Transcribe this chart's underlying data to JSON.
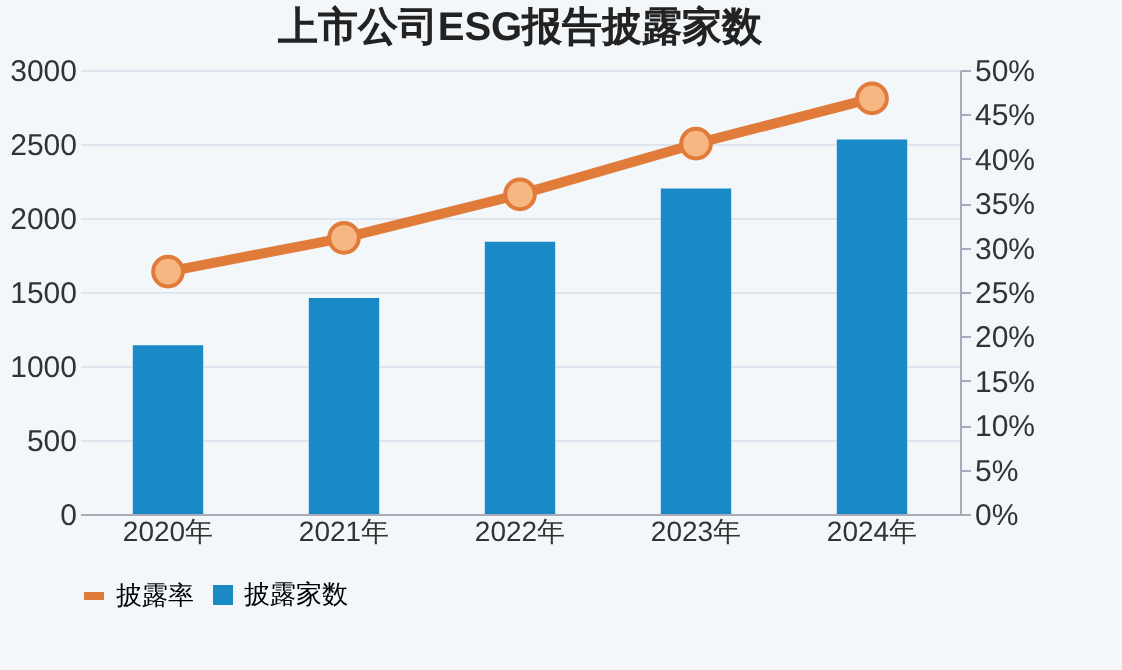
{
  "chart_data": {
    "type": "bar",
    "title": "上市公司ESG报告披露家数",
    "categories": [
      "2020年",
      "2021年",
      "2022年",
      "2023年",
      "2024年"
    ],
    "series": [
      {
        "name": "披露率",
        "type": "line",
        "axis": "y2",
        "color": "#e07b39",
        "values": [
          27.3,
          31.1,
          36.0,
          41.7,
          46.8
        ]
      },
      {
        "name": "披露家数",
        "color": "#1a8ac6",
        "values": [
          1140,
          1460,
          1840,
          2200,
          2530
        ]
      }
    ],
    "ylim": [
      0,
      3000
    ],
    "yticks": [
      0,
      500,
      1000,
      1500,
      2000,
      2500,
      3000
    ],
    "y2lim": [
      0,
      50
    ],
    "y2ticks": [
      {
        "value": 0,
        "label": "0%"
      },
      {
        "value": 5,
        "label": "5%"
      },
      {
        "value": 10,
        "label": "10%"
      },
      {
        "value": 15,
        "label": "15%"
      },
      {
        "value": 20,
        "label": "20%"
      },
      {
        "value": 25,
        "label": "25%"
      },
      {
        "value": 30,
        "label": "30%"
      },
      {
        "value": 35,
        "label": "35%"
      },
      {
        "value": 40,
        "label": "40%"
      },
      {
        "value": 45,
        "label": "45%"
      },
      {
        "value": 50,
        "label": "50%"
      }
    ],
    "grid": "y",
    "legend": "bottom",
    "marker": "circle"
  }
}
